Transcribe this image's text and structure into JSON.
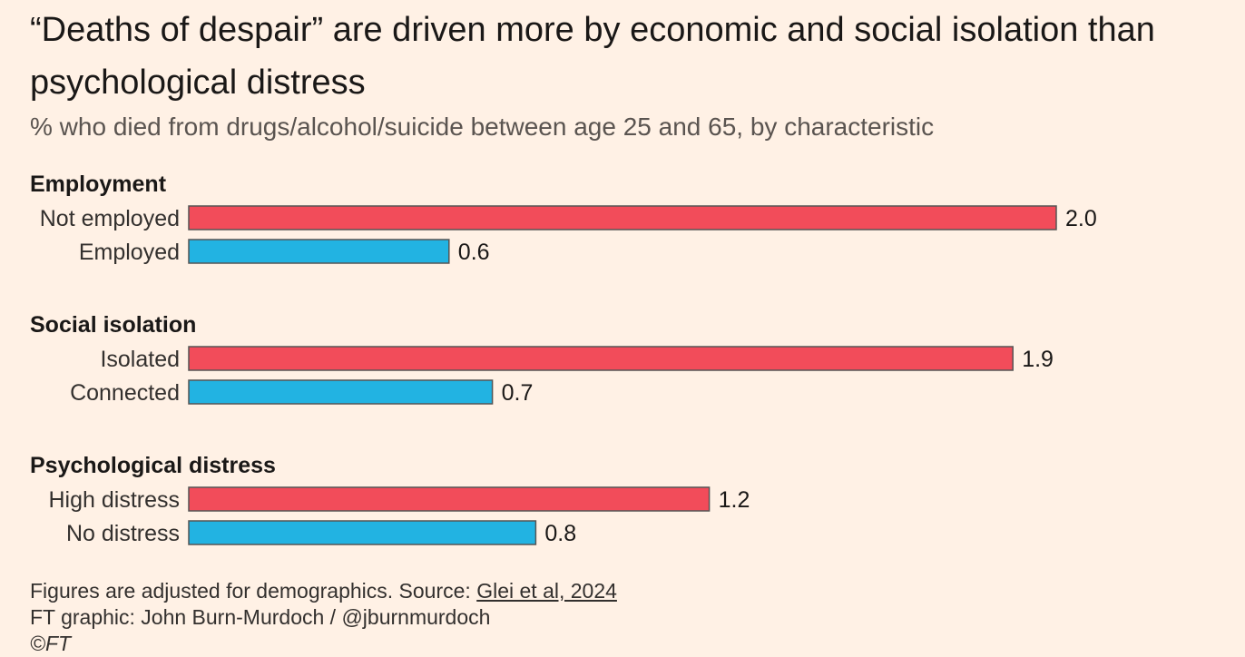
{
  "colors": {
    "background": "#fff1e5",
    "highlight": "#f24c5a",
    "baseline": "#22b3e2"
  },
  "chart_data": {
    "type": "bar",
    "orientation": "horizontal",
    "title": "“Deaths of despair” are driven more by economic and social isolation than psychological distress",
    "subtitle": "% who died from drugs/alcohol/suicide between age 25 and 65, by characteristic",
    "xlim": [
      0,
      2.0
    ],
    "groups": [
      {
        "name": "Employment",
        "bars": [
          {
            "label": "Not employed",
            "value": 2.0,
            "value_label": "2.0",
            "color": "#f24c5a"
          },
          {
            "label": "Employed",
            "value": 0.6,
            "value_label": "0.6",
            "color": "#22b3e2"
          }
        ]
      },
      {
        "name": "Social isolation",
        "bars": [
          {
            "label": "Isolated",
            "value": 1.9,
            "value_label": "1.9",
            "color": "#f24c5a"
          },
          {
            "label": "Connected",
            "value": 0.7,
            "value_label": "0.7",
            "color": "#22b3e2"
          }
        ]
      },
      {
        "name": "Psychological distress",
        "bars": [
          {
            "label": "High distress",
            "value": 1.2,
            "value_label": "1.2",
            "color": "#f24c5a"
          },
          {
            "label": "No distress",
            "value": 0.8,
            "value_label": "0.8",
            "color": "#22b3e2"
          }
        ]
      }
    ]
  },
  "footer": {
    "note_prefix": "Figures are adjusted for demographics. Source: ",
    "source_link": "Glei et al, 2024",
    "credit": "FT graphic: John Burn-Murdoch / @jburnmurdoch",
    "copyright": "©FT"
  }
}
